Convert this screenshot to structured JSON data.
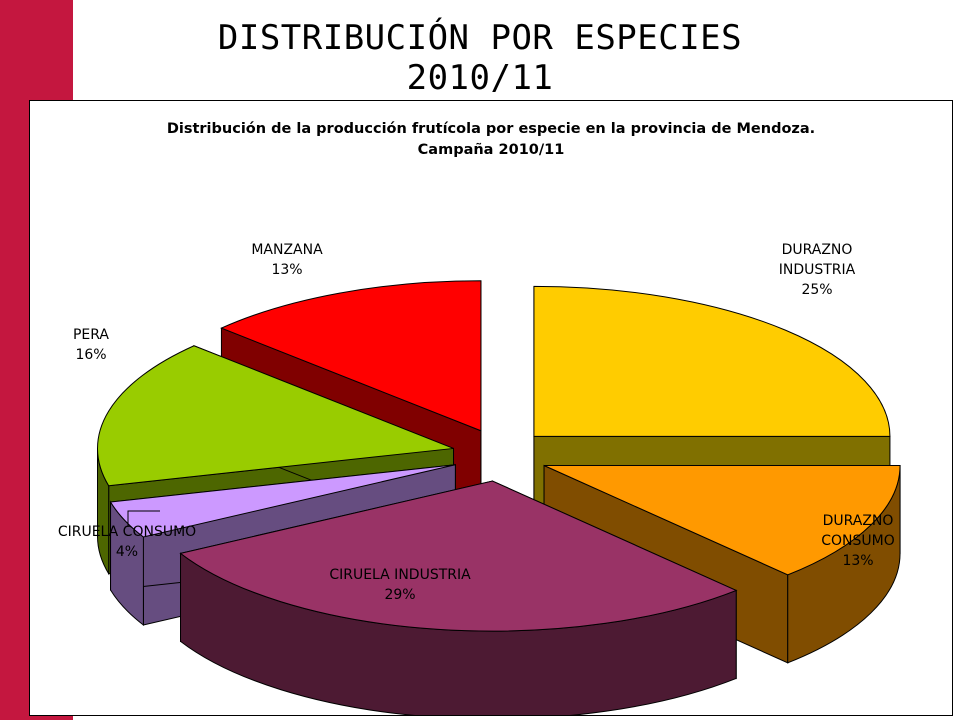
{
  "page": {
    "title": "DISTRIBUCIÓN POR ESPECIES 2010/11",
    "accent_color": "#c4173f"
  },
  "chart_data": {
    "type": "pie",
    "title_lines": [
      "Distribución de la producción frutícola por especie en la provincia de Mendoza.",
      "Campaña 2010/11"
    ],
    "legend": "none",
    "slices": [
      {
        "label": "DURAZNO INDUSTRIA",
        "value": 25,
        "value_label": "25%",
        "color": "#ffcc00",
        "side_color": "#807000"
      },
      {
        "label": "DURAZNO CONSUMO",
        "value": 13,
        "value_label": "13%",
        "color": "#ff9900",
        "side_color": "#804d00"
      },
      {
        "label": "CIRUELA INDUSTRIA",
        "value": 29,
        "value_label": "29%",
        "color": "#993366",
        "side_color": "#4d1a33"
      },
      {
        "label": "CIRUELA CONSUMO",
        "value": 4,
        "value_label": "4%",
        "color": "#cc99ff",
        "side_color": "#664d80"
      },
      {
        "label": "PERA",
        "value": 16,
        "value_label": "16%",
        "color": "#99cc00",
        "side_color": "#4d6600"
      },
      {
        "label": "MANZANA",
        "value": 13,
        "value_label": "13%",
        "color": "#ff0000",
        "side_color": "#800000"
      }
    ]
  }
}
